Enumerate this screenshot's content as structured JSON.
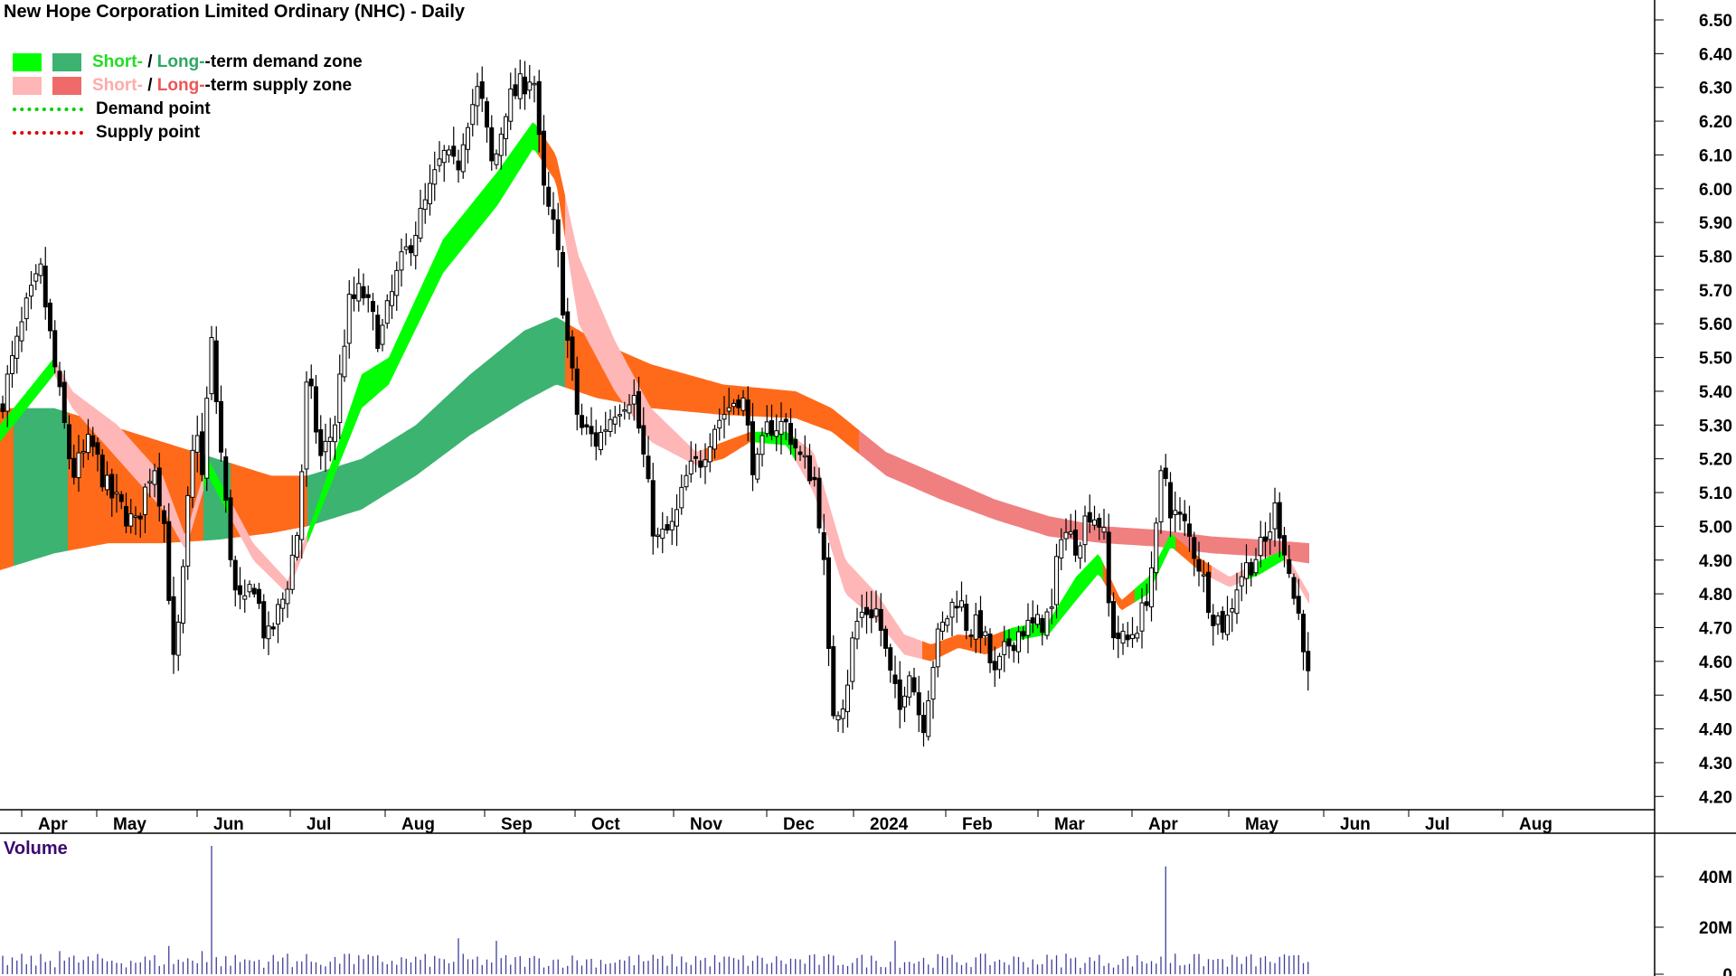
{
  "chart_data": [
    {
      "type": "candlestick",
      "title": "New Hope Corporation Limited Ordinary (NHC) - Daily",
      "y_axis_ticks": [
        "6.50",
        "6.40",
        "6.30",
        "6.20",
        "6.10",
        "6.00",
        "5.90",
        "5.80",
        "5.70",
        "5.60",
        "5.50",
        "5.40",
        "5.30",
        "5.20",
        "5.10",
        "5.00",
        "4.90",
        "4.80",
        "4.70",
        "4.60",
        "4.50",
        "4.40",
        "4.30",
        "4.20"
      ],
      "ylim": [
        4.16,
        6.53
      ],
      "x_axis_labels": [
        "Apr",
        "May",
        "Jun",
        "Jul",
        "Aug",
        "Sep",
        "Oct",
        "Nov",
        "Dec",
        "2024",
        "Feb",
        "Mar",
        "Apr",
        "May",
        "Jun",
        "Jul",
        "Aug"
      ],
      "legend": [
        {
          "short": "Short-",
          "sep": " / ",
          "long": "Long-",
          "rest": "-term demand zone"
        },
        {
          "short": "Short-",
          "sep": " / ",
          "long": "Long-",
          "rest": "-term supply zone"
        },
        {
          "label": "Demand point"
        },
        {
          "label": "Supply point"
        }
      ],
      "zone_colors": {
        "short_demand": "#00ff00",
        "long_demand": "#3cb371",
        "short_supply": "#ffb6b6",
        "long_supply_strong": "#ff6a1a",
        "long_supply_weak": "#f08080",
        "demand_point": "#00cc00",
        "supply_point": "#dd0000"
      },
      "price_path": [
        [
          0,
          5.35
        ],
        [
          30,
          5.65
        ],
        [
          45,
          5.75
        ],
        [
          60,
          5.48
        ],
        [
          80,
          5.15
        ],
        [
          100,
          5.25
        ],
        [
          120,
          5.1
        ],
        [
          150,
          5.0
        ],
        [
          170,
          5.2
        ],
        [
          185,
          4.95
        ],
        [
          190,
          4.55
        ],
        [
          200,
          4.75
        ],
        [
          210,
          5.15
        ],
        [
          218,
          5.3
        ],
        [
          225,
          5.1
        ],
        [
          232,
          5.6
        ],
        [
          240,
          5.35
        ],
        [
          250,
          5.05
        ],
        [
          260,
          4.8
        ],
        [
          270,
          4.75
        ],
        [
          280,
          4.85
        ],
        [
          295,
          4.65
        ],
        [
          315,
          4.8
        ],
        [
          330,
          5.0
        ],
        [
          340,
          5.45
        ],
        [
          355,
          5.2
        ],
        [
          370,
          5.3
        ],
        [
          385,
          5.65
        ],
        [
          400,
          5.7
        ],
        [
          420,
          5.55
        ],
        [
          440,
          5.75
        ],
        [
          455,
          5.85
        ],
        [
          470,
          5.95
        ],
        [
          490,
          6.1
        ],
        [
          505,
          6.05
        ],
        [
          515,
          6.2
        ],
        [
          530,
          6.3
        ],
        [
          545,
          6.05
        ],
        [
          560,
          6.25
        ],
        [
          575,
          6.3
        ],
        [
          590,
          6.35
        ],
        [
          600,
          6.0
        ],
        [
          615,
          5.85
        ],
        [
          625,
          5.6
        ],
        [
          640,
          5.3
        ],
        [
          660,
          5.25
        ],
        [
          680,
          5.35
        ],
        [
          700,
          5.4
        ],
        [
          712,
          5.2
        ],
        [
          725,
          4.95
        ],
        [
          745,
          5.0
        ],
        [
          760,
          5.15
        ],
        [
          775,
          5.2
        ],
        [
          790,
          5.3
        ],
        [
          805,
          5.35
        ],
        [
          820,
          5.4
        ],
        [
          835,
          5.15
        ],
        [
          850,
          5.3
        ],
        [
          870,
          5.3
        ],
        [
          885,
          5.2
        ],
        [
          900,
          5.15
        ],
        [
          910,
          4.95
        ],
        [
          915,
          4.65
        ],
        [
          922,
          4.45
        ],
        [
          935,
          4.5
        ],
        [
          945,
          4.7
        ],
        [
          955,
          4.75
        ],
        [
          970,
          4.75
        ],
        [
          985,
          4.55
        ],
        [
          995,
          4.45
        ],
        [
          1005,
          4.6
        ],
        [
          1020,
          4.4
        ],
        [
          1035,
          4.65
        ],
        [
          1050,
          4.75
        ],
        [
          1060,
          4.8
        ],
        [
          1070,
          4.7
        ],
        [
          1085,
          4.7
        ],
        [
          1100,
          4.55
        ],
        [
          1115,
          4.65
        ],
        [
          1130,
          4.7
        ],
        [
          1145,
          4.7
        ],
        [
          1165,
          4.75
        ],
        [
          1172,
          5.0
        ],
        [
          1190,
          4.95
        ],
        [
          1205,
          5.05
        ],
        [
          1220,
          5.0
        ],
        [
          1228,
          4.7
        ],
        [
          1245,
          4.65
        ],
        [
          1265,
          4.75
        ],
        [
          1278,
          4.95
        ],
        [
          1286,
          5.2
        ],
        [
          1295,
          5.05
        ],
        [
          1310,
          5.0
        ],
        [
          1325,
          4.9
        ],
        [
          1340,
          4.75
        ],
        [
          1355,
          4.7
        ],
        [
          1370,
          4.85
        ],
        [
          1385,
          4.9
        ],
        [
          1400,
          4.95
        ],
        [
          1410,
          5.05
        ],
        [
          1420,
          4.95
        ],
        [
          1430,
          4.8
        ],
        [
          1440,
          4.7
        ],
        [
          1445,
          4.58
        ],
        [
          1450,
          4.48
        ]
      ],
      "long_term_band": {
        "upper": [
          [
            0,
            5.35
          ],
          [
            60,
            5.35
          ],
          [
            120,
            5.3
          ],
          [
            180,
            5.25
          ],
          [
            240,
            5.2
          ],
          [
            300,
            5.15
          ],
          [
            340,
            5.15
          ],
          [
            400,
            5.2
          ],
          [
            460,
            5.3
          ],
          [
            520,
            5.45
          ],
          [
            580,
            5.58
          ],
          [
            615,
            5.62
          ],
          [
            660,
            5.55
          ],
          [
            720,
            5.48
          ],
          [
            800,
            5.42
          ],
          [
            880,
            5.4
          ],
          [
            920,
            5.35
          ],
          [
            980,
            5.22
          ],
          [
            1040,
            5.15
          ],
          [
            1100,
            5.08
          ],
          [
            1160,
            5.03
          ],
          [
            1220,
            5.0
          ],
          [
            1280,
            4.99
          ],
          [
            1340,
            4.97
          ],
          [
            1400,
            4.96
          ],
          [
            1448,
            4.95
          ]
        ],
        "lower": [
          [
            0,
            4.87
          ],
          [
            60,
            4.92
          ],
          [
            120,
            4.95
          ],
          [
            180,
            4.95
          ],
          [
            240,
            4.96
          ],
          [
            300,
            4.98
          ],
          [
            340,
            5.0
          ],
          [
            400,
            5.05
          ],
          [
            460,
            5.15
          ],
          [
            520,
            5.27
          ],
          [
            580,
            5.37
          ],
          [
            615,
            5.42
          ],
          [
            660,
            5.38
          ],
          [
            720,
            5.35
          ],
          [
            800,
            5.33
          ],
          [
            880,
            5.32
          ],
          [
            920,
            5.28
          ],
          [
            980,
            5.15
          ],
          [
            1040,
            5.08
          ],
          [
            1100,
            5.02
          ],
          [
            1160,
            4.97
          ],
          [
            1220,
            4.95
          ],
          [
            1280,
            4.94
          ],
          [
            1340,
            4.92
          ],
          [
            1400,
            4.91
          ],
          [
            1448,
            4.89
          ]
        ],
        "segments": [
          [
            0,
            15,
            "long_supply_strong"
          ],
          [
            15,
            75,
            "long_demand"
          ],
          [
            75,
            225,
            "long_supply_strong"
          ],
          [
            225,
            255,
            "long_demand"
          ],
          [
            255,
            340,
            "long_supply_strong"
          ],
          [
            340,
            625,
            "long_demand"
          ],
          [
            625,
            950,
            "long_supply_strong"
          ],
          [
            950,
            1448,
            "long_supply_weak"
          ]
        ]
      },
      "short_term_band": {
        "upper": [
          [
            0,
            5.3
          ],
          [
            60,
            5.5
          ],
          [
            80,
            5.4
          ],
          [
            130,
            5.3
          ],
          [
            180,
            5.15
          ],
          [
            205,
            4.97
          ],
          [
            230,
            5.2
          ],
          [
            250,
            5.1
          ],
          [
            280,
            4.95
          ],
          [
            318,
            4.84
          ],
          [
            340,
            4.98
          ],
          [
            400,
            5.45
          ],
          [
            430,
            5.5
          ],
          [
            490,
            5.85
          ],
          [
            550,
            6.05
          ],
          [
            590,
            6.2
          ],
          [
            615,
            6.1
          ],
          [
            640,
            5.8
          ],
          [
            680,
            5.55
          ],
          [
            720,
            5.35
          ],
          [
            770,
            5.22
          ],
          [
            800,
            5.25
          ],
          [
            830,
            5.28
          ],
          [
            870,
            5.28
          ],
          [
            900,
            5.22
          ],
          [
            935,
            4.9
          ],
          [
            970,
            4.8
          ],
          [
            1000,
            4.68
          ],
          [
            1030,
            4.65
          ],
          [
            1060,
            4.68
          ],
          [
            1090,
            4.67
          ],
          [
            1120,
            4.7
          ],
          [
            1160,
            4.72
          ],
          [
            1190,
            4.85
          ],
          [
            1215,
            4.92
          ],
          [
            1240,
            4.78
          ],
          [
            1270,
            4.85
          ],
          [
            1295,
            4.98
          ],
          [
            1330,
            4.9
          ],
          [
            1360,
            4.85
          ],
          [
            1395,
            4.9
          ],
          [
            1420,
            4.93
          ],
          [
            1448,
            4.8
          ]
        ],
        "lower": [
          [
            0,
            5.25
          ],
          [
            60,
            5.45
          ],
          [
            80,
            5.35
          ],
          [
            130,
            5.2
          ],
          [
            180,
            5.05
          ],
          [
            205,
            4.93
          ],
          [
            230,
            5.15
          ],
          [
            250,
            5.05
          ],
          [
            280,
            4.9
          ],
          [
            318,
            4.8
          ],
          [
            340,
            4.95
          ],
          [
            400,
            5.35
          ],
          [
            430,
            5.42
          ],
          [
            490,
            5.75
          ],
          [
            550,
            5.95
          ],
          [
            590,
            6.12
          ],
          [
            615,
            6.02
          ],
          [
            640,
            5.6
          ],
          [
            680,
            5.4
          ],
          [
            720,
            5.25
          ],
          [
            770,
            5.18
          ],
          [
            800,
            5.2
          ],
          [
            830,
            5.25
          ],
          [
            870,
            5.24
          ],
          [
            900,
            5.1
          ],
          [
            935,
            4.8
          ],
          [
            970,
            4.72
          ],
          [
            1000,
            4.62
          ],
          [
            1030,
            4.6
          ],
          [
            1060,
            4.64
          ],
          [
            1090,
            4.62
          ],
          [
            1120,
            4.66
          ],
          [
            1160,
            4.68
          ],
          [
            1190,
            4.78
          ],
          [
            1215,
            4.86
          ],
          [
            1240,
            4.75
          ],
          [
            1270,
            4.8
          ],
          [
            1295,
            4.94
          ],
          [
            1330,
            4.86
          ],
          [
            1360,
            4.82
          ],
          [
            1395,
            4.86
          ],
          [
            1420,
            4.9
          ],
          [
            1448,
            4.77
          ]
        ],
        "segments": [
          [
            0,
            60,
            "short_demand"
          ],
          [
            60,
            225,
            "short_supply"
          ],
          [
            225,
            255,
            "short_demand"
          ],
          [
            255,
            340,
            "short_supply"
          ],
          [
            340,
            595,
            "short_demand"
          ],
          [
            595,
            625,
            "long_supply_strong"
          ],
          [
            625,
            780,
            "short_supply"
          ],
          [
            780,
            830,
            "long_supply_strong"
          ],
          [
            830,
            880,
            "short_demand"
          ],
          [
            880,
            1020,
            "short_supply"
          ],
          [
            1020,
            1110,
            "long_supply_strong"
          ],
          [
            1110,
            1160,
            "short_demand"
          ],
          [
            1160,
            1220,
            "short_demand"
          ],
          [
            1220,
            1255,
            "long_supply_strong"
          ],
          [
            1255,
            1300,
            "short_demand"
          ],
          [
            1300,
            1340,
            "long_supply_strong"
          ],
          [
            1340,
            1380,
            "short_supply"
          ],
          [
            1380,
            1420,
            "short_demand"
          ],
          [
            1420,
            1448,
            "short_supply"
          ]
        ]
      }
    },
    {
      "type": "bar",
      "title": "Volume",
      "y_axis_ticks": [
        "40M",
        "20M",
        "0"
      ],
      "ylim": [
        0,
        52
      ],
      "spikes": [
        [
          233,
          50
        ],
        [
          1290,
          42
        ],
        [
          990,
          13
        ],
        [
          507,
          14
        ],
        [
          551,
          13
        ],
        [
          188,
          11
        ],
        [
          65,
          9
        ],
        [
          221,
          9
        ],
        [
          316,
          8
        ],
        [
          386,
          8
        ],
        [
          768,
          7
        ],
        [
          1045,
          7
        ],
        [
          1177,
          8
        ],
        [
          1300,
          8
        ]
      ],
      "baseline_volume": 5
    }
  ]
}
